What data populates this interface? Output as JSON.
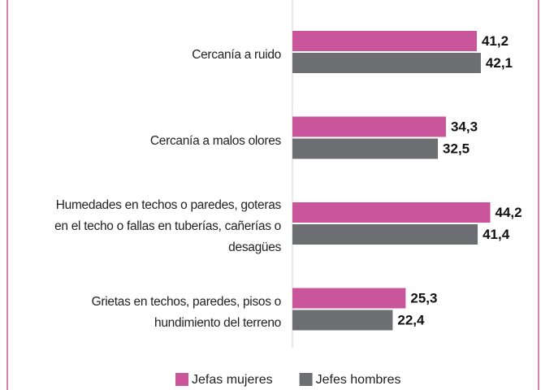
{
  "chart_data": {
    "type": "hbar",
    "categories": [
      "Cercanía a ruido",
      "Cercanía a malos olores",
      "Humedades en techos o paredes, goteras\nen el techo o fallas en tuberías, cañerías o\ndesagües",
      "Grietas en techos, paredes, pisos o\nhundimiento del terreno"
    ],
    "series": [
      {
        "name": "Jefas mujeres",
        "color": "#c9559b",
        "values": [
          41.2,
          34.3,
          44.2,
          25.3
        ],
        "value_labels": [
          "41,2",
          "34,3",
          "44,2",
          "25,3"
        ]
      },
      {
        "name": "Jefes hombres",
        "color": "#6d6e71",
        "values": [
          42.1,
          32.5,
          41.4,
          22.4
        ],
        "value_labels": [
          "42,1",
          "32,5",
          "41,4",
          "22,4"
        ]
      }
    ],
    "xlim": [
      0,
      55
    ],
    "legend": "bottom"
  }
}
